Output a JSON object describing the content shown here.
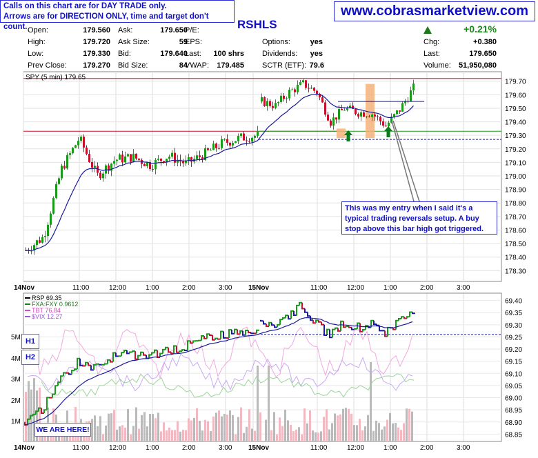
{
  "notice": {
    "line1": "Calls on this chart are for DAY TRADE only.",
    "line2": "Arrows are for DIRECTION ONLY, time and target don't count."
  },
  "site": "www.cobrasmarketview.com",
  "symbol": "RSHLS",
  "quote": {
    "open_label": "Open:",
    "open": "179.560",
    "high_label": "High:",
    "high": "179.720",
    "low_label": "Low:",
    "low": "179.330",
    "prev_label": "Prev Close:",
    "prev": "179.270",
    "ask_label": "Ask:",
    "ask": "179.650",
    "asksize_label": "Ask Size:",
    "asksize": "59",
    "bid_label": "Bid:",
    "bid": "179.640",
    "bidsize_label": "Bid Size:",
    "bidsize": "84",
    "pe_label": "P/E:",
    "eps_label": "EPS:",
    "last_label": "Last:",
    "last_vol": "100 shrs",
    "vwap_label": "VWAP:",
    "vwap": "179.485",
    "options_label": "Options:",
    "options": "yes",
    "div_label": "Dividends:",
    "div": "yes",
    "sctr_label": "SCTR (ETF):",
    "sctr": "79.6",
    "pct": "+0.21%",
    "chg_label": "Chg:",
    "chg": "+0.380",
    "last2_label": "Last:",
    "last2": "179.650",
    "volume_label": "Volume:",
    "volume": "51,950,080"
  },
  "annotation": "This was my entry when I said it's a typical trading reversals setup. A buy stop above this bar high got triggered.",
  "sidebar": {
    "h1": "H1",
    "h2": "H2",
    "we_are_here": "WE ARE HERE!"
  },
  "colors": {
    "up": "#1a9a1a",
    "down": "#c8102e",
    "ma": "#1a1a9a",
    "accent": "#1010c8"
  },
  "chart_data": [
    {
      "type": "line",
      "title": "SPY (5 min) 179.65",
      "ylim": [
        178.22,
        179.77
      ],
      "yticks": [
        "179.70",
        "179.60",
        "179.50",
        "179.40",
        "179.30",
        "179.20",
        "179.10",
        "179.00",
        "178.90",
        "178.80",
        "178.70",
        "178.60",
        "178.50",
        "178.40",
        "178.30"
      ],
      "xticks": [
        "14Nov",
        "11:00",
        "12:00",
        "1:00",
        "2:00",
        "3:00",
        "15Nov",
        "11:00",
        "12:00",
        "1:00",
        "2:00",
        "3:00"
      ],
      "hlines": [
        179.72,
        179.33
      ],
      "dashed_line": 179.27,
      "x_day1": [
        "9:35",
        "10:00",
        "10:30",
        "11:00",
        "11:30",
        "12:00",
        "12:30",
        "1:00",
        "1:30",
        "2:00",
        "2:30",
        "3:00",
        "3:30",
        "4:00"
      ],
      "close_day1": [
        178.45,
        178.55,
        179.05,
        179.28,
        179.0,
        179.12,
        179.14,
        179.08,
        179.15,
        179.09,
        179.16,
        179.24,
        179.28,
        179.3
      ],
      "x_day2": [
        "9:35",
        "10:00",
        "10:30",
        "11:00",
        "11:30",
        "12:00",
        "12:15",
        "12:30",
        "12:45",
        "1:00",
        "1:15",
        "1:30"
      ],
      "close_day2": [
        179.55,
        179.52,
        179.62,
        179.68,
        179.62,
        179.4,
        179.5,
        179.47,
        179.46,
        179.37,
        179.49,
        179.65
      ]
    },
    {
      "type": "line",
      "title": "RSP 69.35",
      "ylim": [
        68.82,
        69.43
      ],
      "yticks": [
        "69.40",
        "69.35",
        "69.30",
        "69.25",
        "69.20",
        "69.15",
        "69.10",
        "69.05",
        "69.00",
        "68.95",
        "68.90",
        "68.85"
      ],
      "vol_ticks": [
        "5M",
        "4M",
        "3M",
        "2M",
        "1M"
      ],
      "legend": [
        "RSP 69.35",
        "FXA:FXY 0.9612",
        "TBT 76.84",
        "$VIX 12.27"
      ],
      "dashed_line": 69.26,
      "close_day1": [
        68.9,
        68.95,
        69.08,
        69.15,
        69.12,
        69.17,
        69.18,
        69.17,
        69.2,
        69.21,
        69.24,
        69.26,
        69.27,
        69.28
      ],
      "close_day2": [
        69.32,
        69.3,
        69.34,
        69.38,
        69.3,
        69.26,
        69.31,
        69.29,
        69.3,
        69.27,
        69.32,
        69.35
      ]
    }
  ]
}
